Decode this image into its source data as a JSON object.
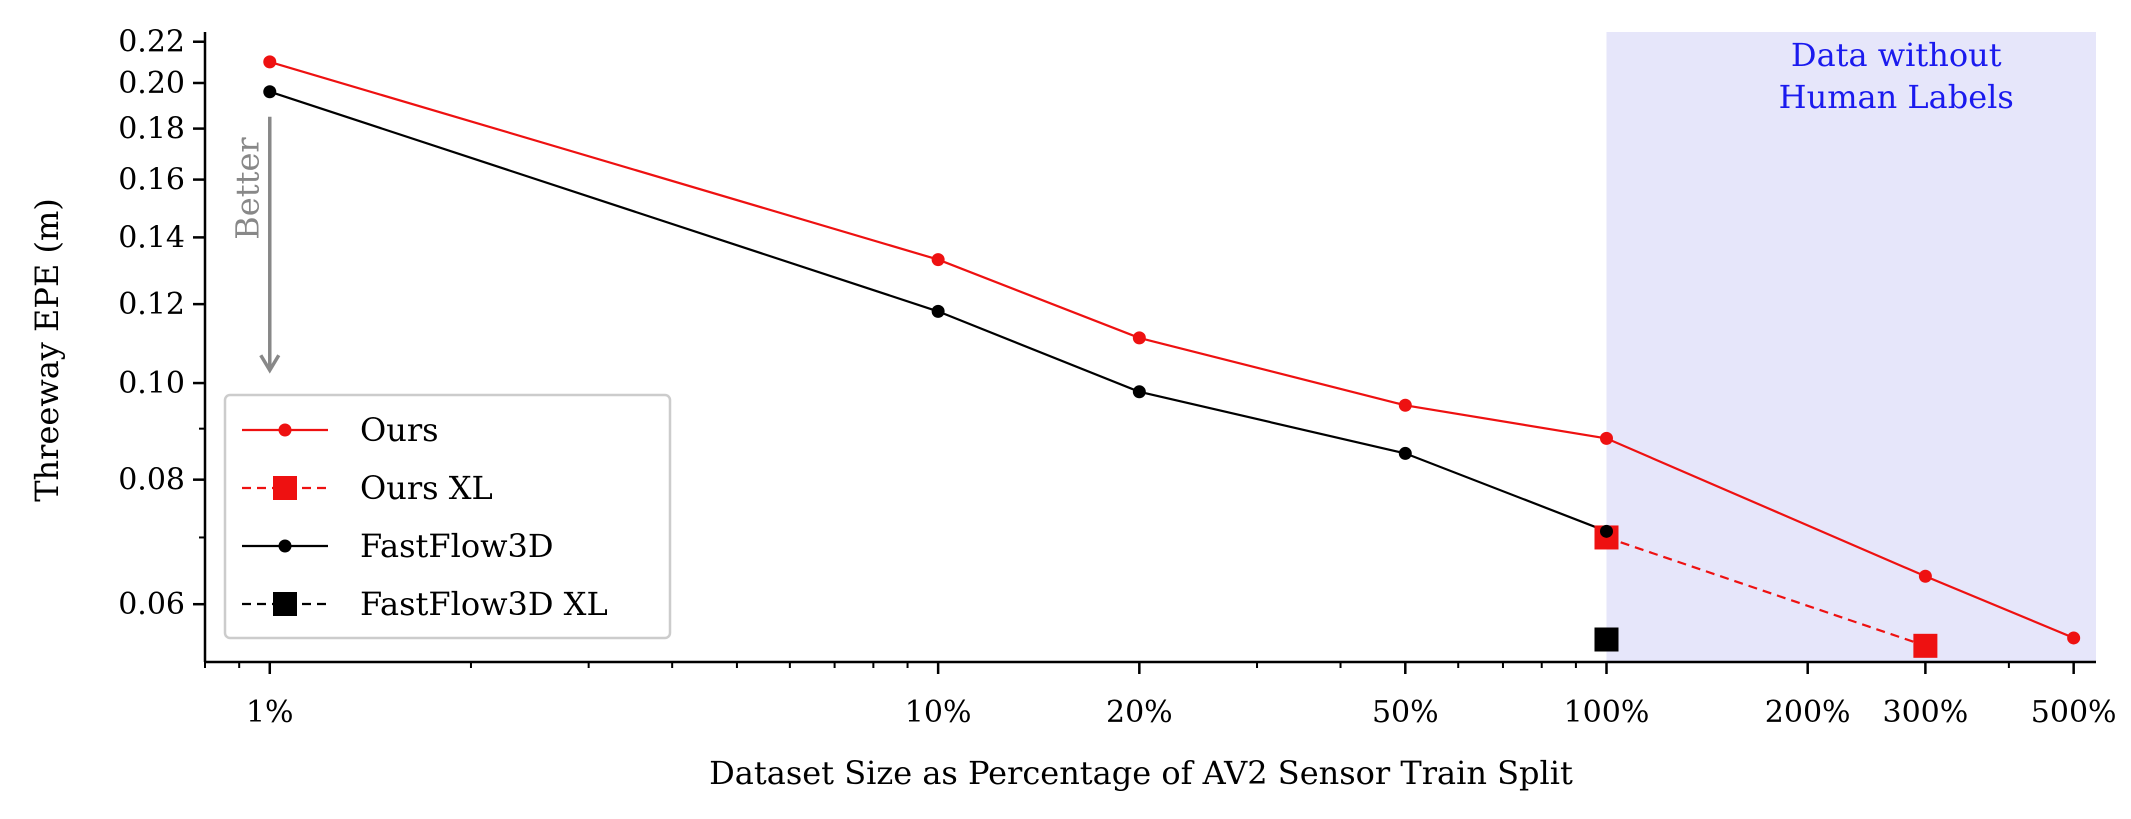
{
  "chart_data": {
    "type": "line",
    "xlabel": "Dataset Size as Percentage of AV2 Sensor Train Split",
    "ylabel": "Threeway EPE (m)",
    "x_scale": "log",
    "y_scale": "log",
    "xlim": [
      0.8,
      540
    ],
    "ylim": [
      0.0525,
      0.225
    ],
    "x_ticks": [
      {
        "value": 1,
        "label": "1%"
      },
      {
        "value": 10,
        "label": "10%"
      },
      {
        "value": 20,
        "label": "20%"
      },
      {
        "value": 50,
        "label": "50%"
      },
      {
        "value": 100,
        "label": "100%"
      },
      {
        "value": 200,
        "label": "200%"
      },
      {
        "value": 300,
        "label": "300%"
      },
      {
        "value": 500,
        "label": "500%"
      }
    ],
    "y_ticks": [
      {
        "value": 0.06,
        "label": "0.06"
      },
      {
        "value": 0.08,
        "label": "0.08"
      },
      {
        "value": 0.1,
        "label": "0.10"
      },
      {
        "value": 0.12,
        "label": "0.12"
      },
      {
        "value": 0.14,
        "label": "0.14"
      },
      {
        "value": 0.16,
        "label": "0.16"
      },
      {
        "value": 0.18,
        "label": "0.18"
      },
      {
        "value": 0.2,
        "label": "0.20"
      },
      {
        "value": 0.22,
        "label": "0.22"
      }
    ],
    "grid": false,
    "legend_position": "bottom-left",
    "series": [
      {
        "name": "Ours",
        "color": "#ee1111",
        "line": "solid",
        "marker": "circle",
        "points": [
          [
            1,
            0.21
          ],
          [
            10,
            0.133
          ],
          [
            20,
            0.111
          ],
          [
            50,
            0.095
          ],
          [
            100,
            0.088
          ],
          [
            300,
            0.064
          ],
          [
            500,
            0.0555
          ]
        ]
      },
      {
        "name": "Ours XL",
        "color": "#ee1111",
        "line": "dashed",
        "marker": "square",
        "points": [
          [
            100,
            0.07
          ],
          [
            300,
            0.0545
          ]
        ]
      },
      {
        "name": "FastFlow3D",
        "color": "#000000",
        "line": "solid",
        "marker": "circle",
        "points": [
          [
            1,
            0.196
          ],
          [
            10,
            0.118
          ],
          [
            20,
            0.098
          ],
          [
            50,
            0.085
          ],
          [
            100,
            0.071
          ]
        ]
      },
      {
        "name": "FastFlow3D XL",
        "color": "#000000",
        "line": "dashed",
        "marker": "square",
        "points": [
          [
            100,
            0.0553
          ]
        ]
      }
    ],
    "shaded_region": {
      "x_from": 100,
      "x_to": 540,
      "color": "#e6e6fa",
      "label_lines": [
        "Data without",
        "Human Labels"
      ],
      "label_color": "#1a1aee"
    },
    "arrow_annotation": {
      "text": "Better",
      "from_y": 0.185,
      "to_y": 0.103,
      "x": 1,
      "color": "#888888"
    }
  }
}
